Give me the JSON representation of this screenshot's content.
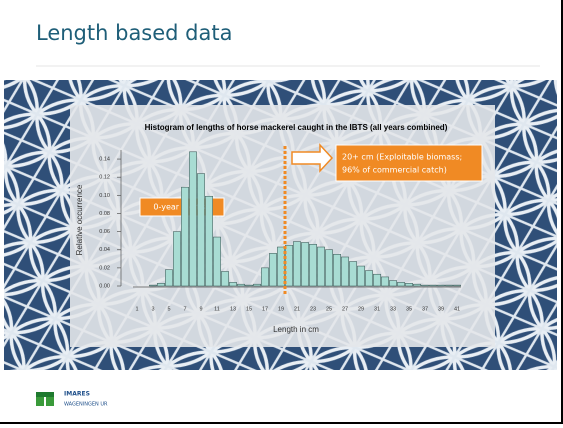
{
  "slide": {
    "title": "Length based data",
    "logo": {
      "name": "IMARES",
      "subtitle": "WAGENINGEN UR"
    }
  },
  "chart_data": {
    "type": "bar",
    "title": "Histogram of lengths of horse mackerel caught in the IBTS (all years combined)",
    "x_label": "Length in cm",
    "y_label": "Relative occurrence",
    "categories": [
      "1",
      null,
      "3",
      null,
      "5",
      null,
      "7",
      null,
      "9",
      null,
      "11",
      null,
      "13",
      null,
      "15",
      null,
      "17",
      null,
      "19",
      null,
      "21",
      null,
      "23",
      null,
      "25",
      null,
      "27",
      null,
      "29",
      null,
      "31",
      null,
      "33",
      null,
      "35",
      null,
      "37",
      null,
      "39",
      null,
      "41"
    ],
    "values": [
      0,
      0,
      0.001,
      0.003,
      0.018,
      0.06,
      0.109,
      0.148,
      0.124,
      0.099,
      0.054,
      0.016,
      0.004,
      0.002,
      0.001,
      0.002,
      0.02,
      0.036,
      0.043,
      0.045,
      0.049,
      0.048,
      0.046,
      0.043,
      0.04,
      0.035,
      0.032,
      0.027,
      0.022,
      0.017,
      0.013,
      0.01,
      0.006,
      0.004,
      0.003,
      0.002,
      0.001,
      0.001,
      0.001,
      0.001,
      0.001
    ],
    "color": "#a8dcd3",
    "ylim": [
      0,
      0.15
    ],
    "yticks": [
      {
        "value": 0,
        "label": "0.00"
      },
      {
        "value": 0.02,
        "label": "0.02"
      },
      {
        "value": 0.04,
        "label": "0.04"
      },
      {
        "value": 0.06,
        "label": "0.06"
      },
      {
        "value": 0.08,
        "label": "0.08"
      },
      {
        "value": 0.1,
        "label": "0.10"
      },
      {
        "value": 0.12,
        "label": "0.12"
      },
      {
        "value": 0.14,
        "label": "0.14"
      }
    ],
    "annotations": [
      "0-year old fish",
      "20+ cm (Exploitable biomass;",
      "96% of commercial catch)"
    ]
  }
}
